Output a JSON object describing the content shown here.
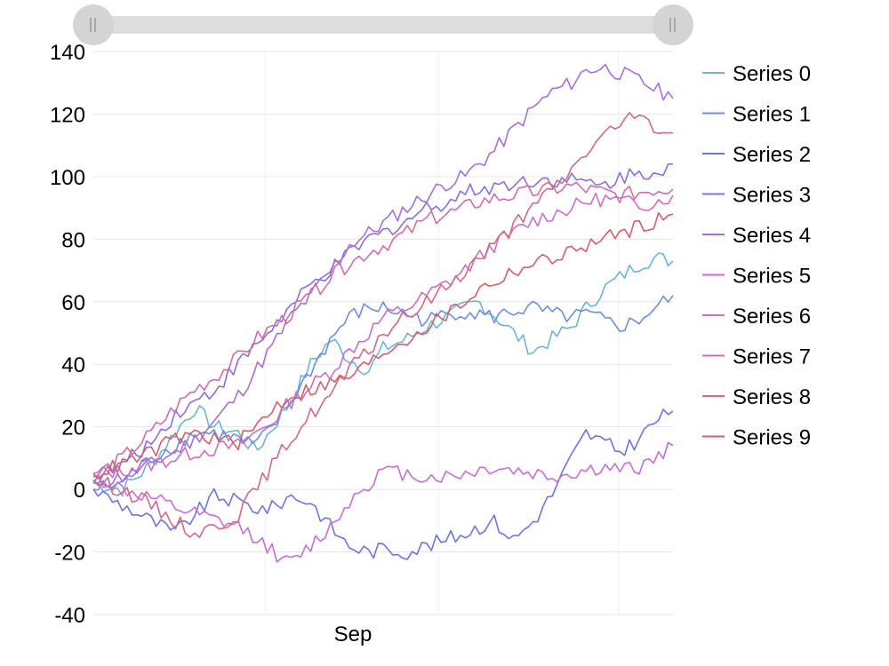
{
  "colors": {
    "series": [
      "#6fb4d6",
      "#6d8fdc",
      "#6e74e0",
      "#8a6fdc",
      "#a56fdc",
      "#c46fd8",
      "#cc6fc6",
      "#cf6fa6",
      "#d06a86",
      "#d2606a"
    ],
    "grid": "#e6e6e6",
    "scrollbar_track": "#dcdcdc",
    "scrollbar_thumb": "#d4d4d4"
  },
  "scrollbar": {
    "left_handle_icon": "grip-icon",
    "right_handle_icon": "grip-icon"
  },
  "chart_data": {
    "type": "line",
    "title": "",
    "xlabel": "",
    "ylabel": "",
    "x_tick_labels": [
      "Sep"
    ],
    "x_gridlines": 4,
    "ylim": [
      -40,
      140
    ],
    "y_ticks": [
      140,
      120,
      100,
      80,
      60,
      40,
      20,
      0,
      -20,
      -40
    ],
    "grid": true,
    "legend_position": "right",
    "x_count": 121,
    "series": [
      {
        "name": "Series 0",
        "anchors": [
          [
            0,
            2
          ],
          [
            10,
            0
          ],
          [
            20,
            8
          ],
          [
            28,
            18
          ],
          [
            35,
            26
          ],
          [
            42,
            20
          ],
          [
            50,
            18
          ],
          [
            56,
            12
          ],
          [
            62,
            20
          ],
          [
            68,
            28
          ],
          [
            75,
            40
          ],
          [
            82,
            48
          ],
          [
            88,
            42
          ],
          [
            95,
            38
          ],
          [
            100,
            45
          ],
          [
            108,
            48
          ],
          [
            115,
            52
          ],
          [
            122,
            55
          ],
          [
            128,
            58
          ],
          [
            133,
            60
          ],
          [
            138,
            56
          ],
          [
            145,
            50
          ],
          [
            152,
            44
          ],
          [
            158,
            48
          ],
          [
            165,
            52
          ],
          [
            170,
            58
          ],
          [
            176,
            64
          ],
          [
            182,
            68
          ],
          [
            188,
            72
          ],
          [
            194,
            74
          ],
          [
            200,
            73
          ]
        ]
      },
      {
        "name": "Series 1",
        "anchors": [
          [
            0,
            0
          ],
          [
            10,
            2
          ],
          [
            20,
            10
          ],
          [
            28,
            14
          ],
          [
            35,
            18
          ],
          [
            42,
            18
          ],
          [
            50,
            16
          ],
          [
            56,
            14
          ],
          [
            62,
            20
          ],
          [
            68,
            28
          ],
          [
            75,
            38
          ],
          [
            82,
            48
          ],
          [
            88,
            55
          ],
          [
            95,
            58
          ],
          [
            100,
            58
          ],
          [
            108,
            56
          ],
          [
            115,
            54
          ],
          [
            122,
            56
          ],
          [
            128,
            57
          ],
          [
            133,
            56
          ],
          [
            138,
            55
          ],
          [
            145,
            57
          ],
          [
            152,
            58
          ],
          [
            158,
            56
          ],
          [
            165,
            55
          ],
          [
            170,
            56
          ],
          [
            176,
            54
          ],
          [
            182,
            52
          ],
          [
            188,
            54
          ],
          [
            194,
            58
          ],
          [
            200,
            62
          ]
        ]
      },
      {
        "name": "Series 2",
        "anchors": [
          [
            0,
            0
          ],
          [
            10,
            -5
          ],
          [
            20,
            -10
          ],
          [
            28,
            -14
          ],
          [
            35,
            -8
          ],
          [
            42,
            -2
          ],
          [
            50,
            -4
          ],
          [
            56,
            -6
          ],
          [
            62,
            -6
          ],
          [
            68,
            -2
          ],
          [
            75,
            -4
          ],
          [
            82,
            -12
          ],
          [
            88,
            -18
          ],
          [
            95,
            -20
          ],
          [
            100,
            -19
          ],
          [
            108,
            -20
          ],
          [
            115,
            -18
          ],
          [
            122,
            -16
          ],
          [
            128,
            -14
          ],
          [
            133,
            -12
          ],
          [
            138,
            -10
          ],
          [
            145,
            -16
          ],
          [
            152,
            -10
          ],
          [
            158,
            -2
          ],
          [
            165,
            10
          ],
          [
            170,
            18
          ],
          [
            176,
            15
          ],
          [
            182,
            12
          ],
          [
            188,
            16
          ],
          [
            194,
            22
          ],
          [
            200,
            25
          ]
        ]
      },
      {
        "name": "Series 3",
        "anchors": [
          [
            0,
            3
          ],
          [
            10,
            8
          ],
          [
            20,
            15
          ],
          [
            28,
            24
          ],
          [
            35,
            28
          ],
          [
            42,
            32
          ],
          [
            50,
            40
          ],
          [
            56,
            46
          ],
          [
            62,
            52
          ],
          [
            68,
            58
          ],
          [
            75,
            65
          ],
          [
            82,
            70
          ],
          [
            88,
            75
          ],
          [
            95,
            80
          ],
          [
            100,
            82
          ],
          [
            108,
            86
          ],
          [
            115,
            90
          ],
          [
            122,
            92
          ],
          [
            128,
            95
          ],
          [
            133,
            96
          ],
          [
            138,
            97
          ],
          [
            145,
            98
          ],
          [
            152,
            99
          ],
          [
            158,
            99
          ],
          [
            165,
            99
          ],
          [
            170,
            98
          ],
          [
            176,
            97
          ],
          [
            182,
            100
          ],
          [
            188,
            101
          ],
          [
            194,
            102
          ],
          [
            200,
            104
          ]
        ]
      },
      {
        "name": "Series 4",
        "anchors": [
          [
            0,
            2
          ],
          [
            10,
            4
          ],
          [
            20,
            8
          ],
          [
            28,
            12
          ],
          [
            35,
            16
          ],
          [
            42,
            22
          ],
          [
            50,
            30
          ],
          [
            56,
            38
          ],
          [
            62,
            46
          ],
          [
            68,
            55
          ],
          [
            75,
            62
          ],
          [
            82,
            70
          ],
          [
            88,
            78
          ],
          [
            95,
            82
          ],
          [
            100,
            85
          ],
          [
            108,
            90
          ],
          [
            115,
            94
          ],
          [
            122,
            98
          ],
          [
            128,
            100
          ],
          [
            133,
            104
          ],
          [
            138,
            108
          ],
          [
            145,
            115
          ],
          [
            152,
            122
          ],
          [
            158,
            127
          ],
          [
            165,
            130
          ],
          [
            170,
            134
          ],
          [
            176,
            135
          ],
          [
            182,
            133
          ],
          [
            188,
            131
          ],
          [
            194,
            128
          ],
          [
            200,
            125
          ]
        ]
      },
      {
        "name": "Series 5",
        "anchors": [
          [
            0,
            4
          ],
          [
            10,
            0
          ],
          [
            20,
            -3
          ],
          [
            28,
            -6
          ],
          [
            35,
            -8
          ],
          [
            42,
            -10
          ],
          [
            50,
            -12
          ],
          [
            56,
            -15
          ],
          [
            62,
            -20
          ],
          [
            68,
            -24
          ],
          [
            75,
            -18
          ],
          [
            82,
            -12
          ],
          [
            88,
            -4
          ],
          [
            95,
            2
          ],
          [
            100,
            6
          ],
          [
            108,
            5
          ],
          [
            115,
            4
          ],
          [
            122,
            4
          ],
          [
            128,
            5
          ],
          [
            133,
            6
          ],
          [
            138,
            7
          ],
          [
            145,
            6
          ],
          [
            152,
            5
          ],
          [
            158,
            4
          ],
          [
            165,
            5
          ],
          [
            170,
            6
          ],
          [
            176,
            7
          ],
          [
            182,
            6
          ],
          [
            188,
            7
          ],
          [
            194,
            10
          ],
          [
            200,
            14
          ]
        ]
      },
      {
        "name": "Series 6",
        "anchors": [
          [
            0,
            5
          ],
          [
            10,
            6
          ],
          [
            20,
            8
          ],
          [
            28,
            10
          ],
          [
            35,
            12
          ],
          [
            42,
            13
          ],
          [
            50,
            14
          ],
          [
            56,
            18
          ],
          [
            62,
            22
          ],
          [
            68,
            28
          ],
          [
            75,
            33
          ],
          [
            82,
            38
          ],
          [
            88,
            44
          ],
          [
            95,
            50
          ],
          [
            100,
            55
          ],
          [
            108,
            58
          ],
          [
            115,
            62
          ],
          [
            122,
            66
          ],
          [
            128,
            70
          ],
          [
            133,
            74
          ],
          [
            138,
            78
          ],
          [
            145,
            82
          ],
          [
            152,
            86
          ],
          [
            158,
            88
          ],
          [
            165,
            90
          ],
          [
            170,
            92
          ],
          [
            176,
            93
          ],
          [
            182,
            92
          ],
          [
            188,
            91
          ],
          [
            194,
            92
          ],
          [
            200,
            94
          ]
        ]
      },
      {
        "name": "Series 7",
        "anchors": [
          [
            0,
            4
          ],
          [
            10,
            10
          ],
          [
            20,
            18
          ],
          [
            28,
            26
          ],
          [
            35,
            32
          ],
          [
            42,
            36
          ],
          [
            50,
            42
          ],
          [
            56,
            48
          ],
          [
            62,
            52
          ],
          [
            68,
            56
          ],
          [
            75,
            62
          ],
          [
            82,
            68
          ],
          [
            88,
            72
          ],
          [
            95,
            76
          ],
          [
            100,
            78
          ],
          [
            108,
            82
          ],
          [
            115,
            86
          ],
          [
            122,
            88
          ],
          [
            128,
            90
          ],
          [
            133,
            92
          ],
          [
            138,
            93
          ],
          [
            145,
            94
          ],
          [
            152,
            95
          ],
          [
            158,
            96
          ],
          [
            165,
            97
          ],
          [
            170,
            96
          ],
          [
            176,
            95
          ],
          [
            182,
            94
          ],
          [
            188,
            95
          ],
          [
            194,
            96
          ],
          [
            200,
            96
          ]
        ]
      },
      {
        "name": "Series 8",
        "anchors": [
          [
            0,
            3
          ],
          [
            10,
            0
          ],
          [
            20,
            -5
          ],
          [
            28,
            -10
          ],
          [
            35,
            -14
          ],
          [
            42,
            -12
          ],
          [
            50,
            -8
          ],
          [
            56,
            0
          ],
          [
            62,
            8
          ],
          [
            68,
            16
          ],
          [
            75,
            24
          ],
          [
            82,
            30
          ],
          [
            88,
            38
          ],
          [
            95,
            44
          ],
          [
            100,
            50
          ],
          [
            108,
            55
          ],
          [
            115,
            60
          ],
          [
            122,
            65
          ],
          [
            128,
            70
          ],
          [
            133,
            74
          ],
          [
            138,
            78
          ],
          [
            145,
            84
          ],
          [
            152,
            90
          ],
          [
            158,
            96
          ],
          [
            165,
            102
          ],
          [
            170,
            108
          ],
          [
            176,
            113
          ],
          [
            182,
            117
          ],
          [
            188,
            119
          ],
          [
            194,
            116
          ],
          [
            200,
            114
          ]
        ]
      },
      {
        "name": "Series 9",
        "anchors": [
          [
            0,
            5
          ],
          [
            10,
            8
          ],
          [
            20,
            12
          ],
          [
            28,
            16
          ],
          [
            35,
            18
          ],
          [
            42,
            16
          ],
          [
            50,
            15
          ],
          [
            56,
            20
          ],
          [
            62,
            26
          ],
          [
            68,
            30
          ],
          [
            75,
            32
          ],
          [
            82,
            34
          ],
          [
            88,
            36
          ],
          [
            95,
            40
          ],
          [
            100,
            44
          ],
          [
            108,
            48
          ],
          [
            115,
            52
          ],
          [
            122,
            56
          ],
          [
            128,
            60
          ],
          [
            133,
            64
          ],
          [
            138,
            66
          ],
          [
            145,
            70
          ],
          [
            152,
            72
          ],
          [
            158,
            74
          ],
          [
            165,
            76
          ],
          [
            170,
            78
          ],
          [
            176,
            80
          ],
          [
            182,
            82
          ],
          [
            188,
            84
          ],
          [
            194,
            86
          ],
          [
            200,
            88
          ]
        ]
      }
    ]
  }
}
